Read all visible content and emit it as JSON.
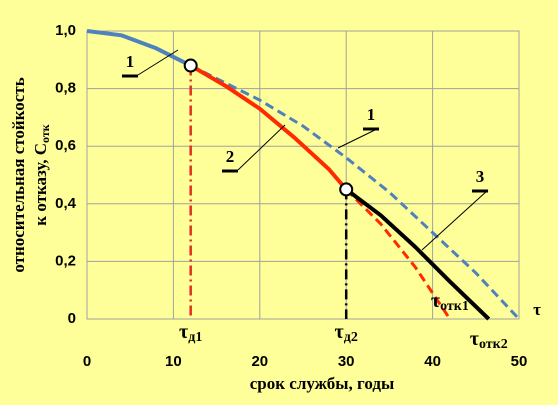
{
  "chart_data": {
    "type": "line",
    "xlabel": "срок службы, годы",
    "ylabel": [
      "относительная  стойкость",
      "к отказу, С"
    ],
    "ylabel_sub": "отк",
    "axis_end_label": "τ",
    "xlim": [
      0,
      50
    ],
    "xticks": [
      0,
      10,
      20,
      30,
      40,
      50
    ],
    "ylim": [
      0,
      1
    ],
    "yticks": [
      0,
      {
        "value": 0.2,
        "label": "0,2"
      },
      {
        "value": 0.4,
        "label": "0,4"
      },
      {
        "value": 0.6,
        "label": "0,6"
      },
      {
        "value": 0.8,
        "label": "0,8"
      },
      {
        "value": 1,
        "label": "1,0"
      }
    ],
    "grid": true,
    "series": [
      {
        "color": "#4f81bd",
        "dashed": false,
        "x": [
          0,
          4,
          8,
          12
        ],
        "values": [
          1.0,
          0.985,
          0.94,
          0.88
        ]
      },
      {
        "color": "#4f81bd",
        "dashed": true,
        "x": [
          12,
          16,
          20,
          25,
          30,
          35,
          40,
          45,
          50
        ],
        "values": [
          0.88,
          0.82,
          0.76,
          0.67,
          0.56,
          0.44,
          0.3,
          0.16,
          0
        ]
      },
      {
        "color": "#ff2a00",
        "dashed": false,
        "x": [
          12,
          16,
          20,
          24,
          28,
          30
        ],
        "values": [
          0.88,
          0.81,
          0.73,
          0.63,
          0.52,
          0.45
        ]
      },
      {
        "color": "#ff2a00",
        "dashed": true,
        "x": [
          30,
          34,
          38,
          42
        ],
        "values": [
          0.45,
          0.33,
          0.18,
          0
        ]
      },
      {
        "color": "#000000",
        "dashed": false,
        "x": [
          30,
          34,
          38,
          42,
          46.5
        ],
        "values": [
          0.45,
          0.36,
          0.25,
          0.13,
          0
        ]
      }
    ],
    "points": [
      {
        "x": 12,
        "y": 0.88,
        "color": "#e03020"
      },
      {
        "x": 30,
        "y": 0.45,
        "color": "#000000"
      }
    ],
    "annotations": [
      "1",
      "1",
      "2",
      "3"
    ],
    "x_markers": [
      {
        "x": 12,
        "symbol": "τ",
        "sub": "д1"
      },
      {
        "x": 30,
        "symbol": "τ",
        "sub": "д2"
      },
      {
        "x": 42,
        "symbol": "τ",
        "sub": "отк1"
      },
      {
        "x": 46.5,
        "symbol": "τ",
        "sub": "отк2"
      }
    ]
  }
}
